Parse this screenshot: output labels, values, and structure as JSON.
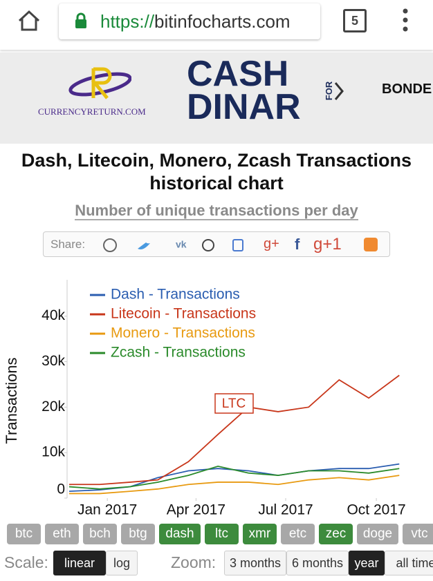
{
  "browser": {
    "scheme": "https://",
    "host": "bitinfocharts.com",
    "tabs": "5"
  },
  "ad": {
    "brand": "CURRENCYRETURN.COM",
    "headline_top": "CASH",
    "headline_side": "FOR",
    "headline_bottom": "DINAR",
    "next": "BONDE"
  },
  "header": {
    "title": "Dash, Litecoin, Monero, Zcash Transactions historical chart",
    "subtitle": "Number of unique transactions per day"
  },
  "share": {
    "label": "Share:",
    "glyphs": [
      "g+",
      "f",
      "g+1"
    ]
  },
  "chart_data": {
    "type": "line",
    "y_label": "Transactions",
    "annotation": "LTC",
    "x": [
      "2016-12",
      "2017-01",
      "2017-02",
      "2017-03",
      "2017-04",
      "2017-05",
      "2017-06",
      "2017-07",
      "2017-08",
      "2017-09",
      "2017-10",
      "2017-11"
    ],
    "xlim": [
      "2016-12",
      "2017-12"
    ],
    "xticks": [
      {
        "value": "2017-01",
        "label": "Jan 2017"
      },
      {
        "value": "2017-04",
        "label": "Apr 2017"
      },
      {
        "value": "2017-07",
        "label": "Jul 2017"
      },
      {
        "value": "2017-10",
        "label": "Oct 2017"
      }
    ],
    "ylim": [
      0,
      48000
    ],
    "yticks": [
      0,
      {
        "value": 10000,
        "label": "10k"
      },
      {
        "value": 20000,
        "label": "20k"
      },
      {
        "value": 30000,
        "label": "30k"
      },
      {
        "value": 40000,
        "label": "40k"
      }
    ],
    "series": [
      {
        "name": "Dash - Transactions",
        "color": "#2a5db0",
        "values": [
          1500,
          1800,
          2500,
          4500,
          6000,
          6500,
          6000,
          5000,
          6000,
          6500,
          6500,
          7500
        ]
      },
      {
        "name": "Litecoin - Transactions",
        "color": "#c8361a",
        "values": [
          3000,
          3000,
          3500,
          4000,
          8000,
          14000,
          20000,
          19000,
          20000,
          26000,
          22000,
          27000
        ]
      },
      {
        "name": "Monero - Transactions",
        "color": "#e89a10",
        "values": [
          1000,
          1000,
          1500,
          2000,
          3000,
          3500,
          3500,
          3000,
          4000,
          4500,
          4000,
          5000
        ]
      },
      {
        "name": "Zcash - Transactions",
        "color": "#2a8a2a",
        "values": [
          2500,
          2000,
          2500,
          3500,
          5000,
          7000,
          5500,
          5000,
          6000,
          6000,
          5500,
          6500
        ]
      }
    ]
  },
  "coins": [
    {
      "label": "btc",
      "active": false
    },
    {
      "label": "eth",
      "active": false
    },
    {
      "label": "bch",
      "active": false
    },
    {
      "label": "btg",
      "active": false
    },
    {
      "label": "dash",
      "active": true
    },
    {
      "label": "ltc",
      "active": true
    },
    {
      "label": "xmr",
      "active": true
    },
    {
      "label": "etc",
      "active": false
    },
    {
      "label": "zec",
      "active": true
    },
    {
      "label": "doge",
      "active": false
    },
    {
      "label": "vtc",
      "active": false
    }
  ],
  "scale": {
    "label": "Scale:",
    "options": [
      {
        "label": "linear",
        "active": true
      },
      {
        "label": "log",
        "active": false
      }
    ]
  },
  "zoom": {
    "label": "Zoom:",
    "options": [
      {
        "label": "3 months",
        "active": false
      },
      {
        "label": "6 months",
        "active": false
      },
      {
        "label": "year",
        "active": true
      },
      {
        "label": "all time",
        "active": false
      }
    ]
  }
}
